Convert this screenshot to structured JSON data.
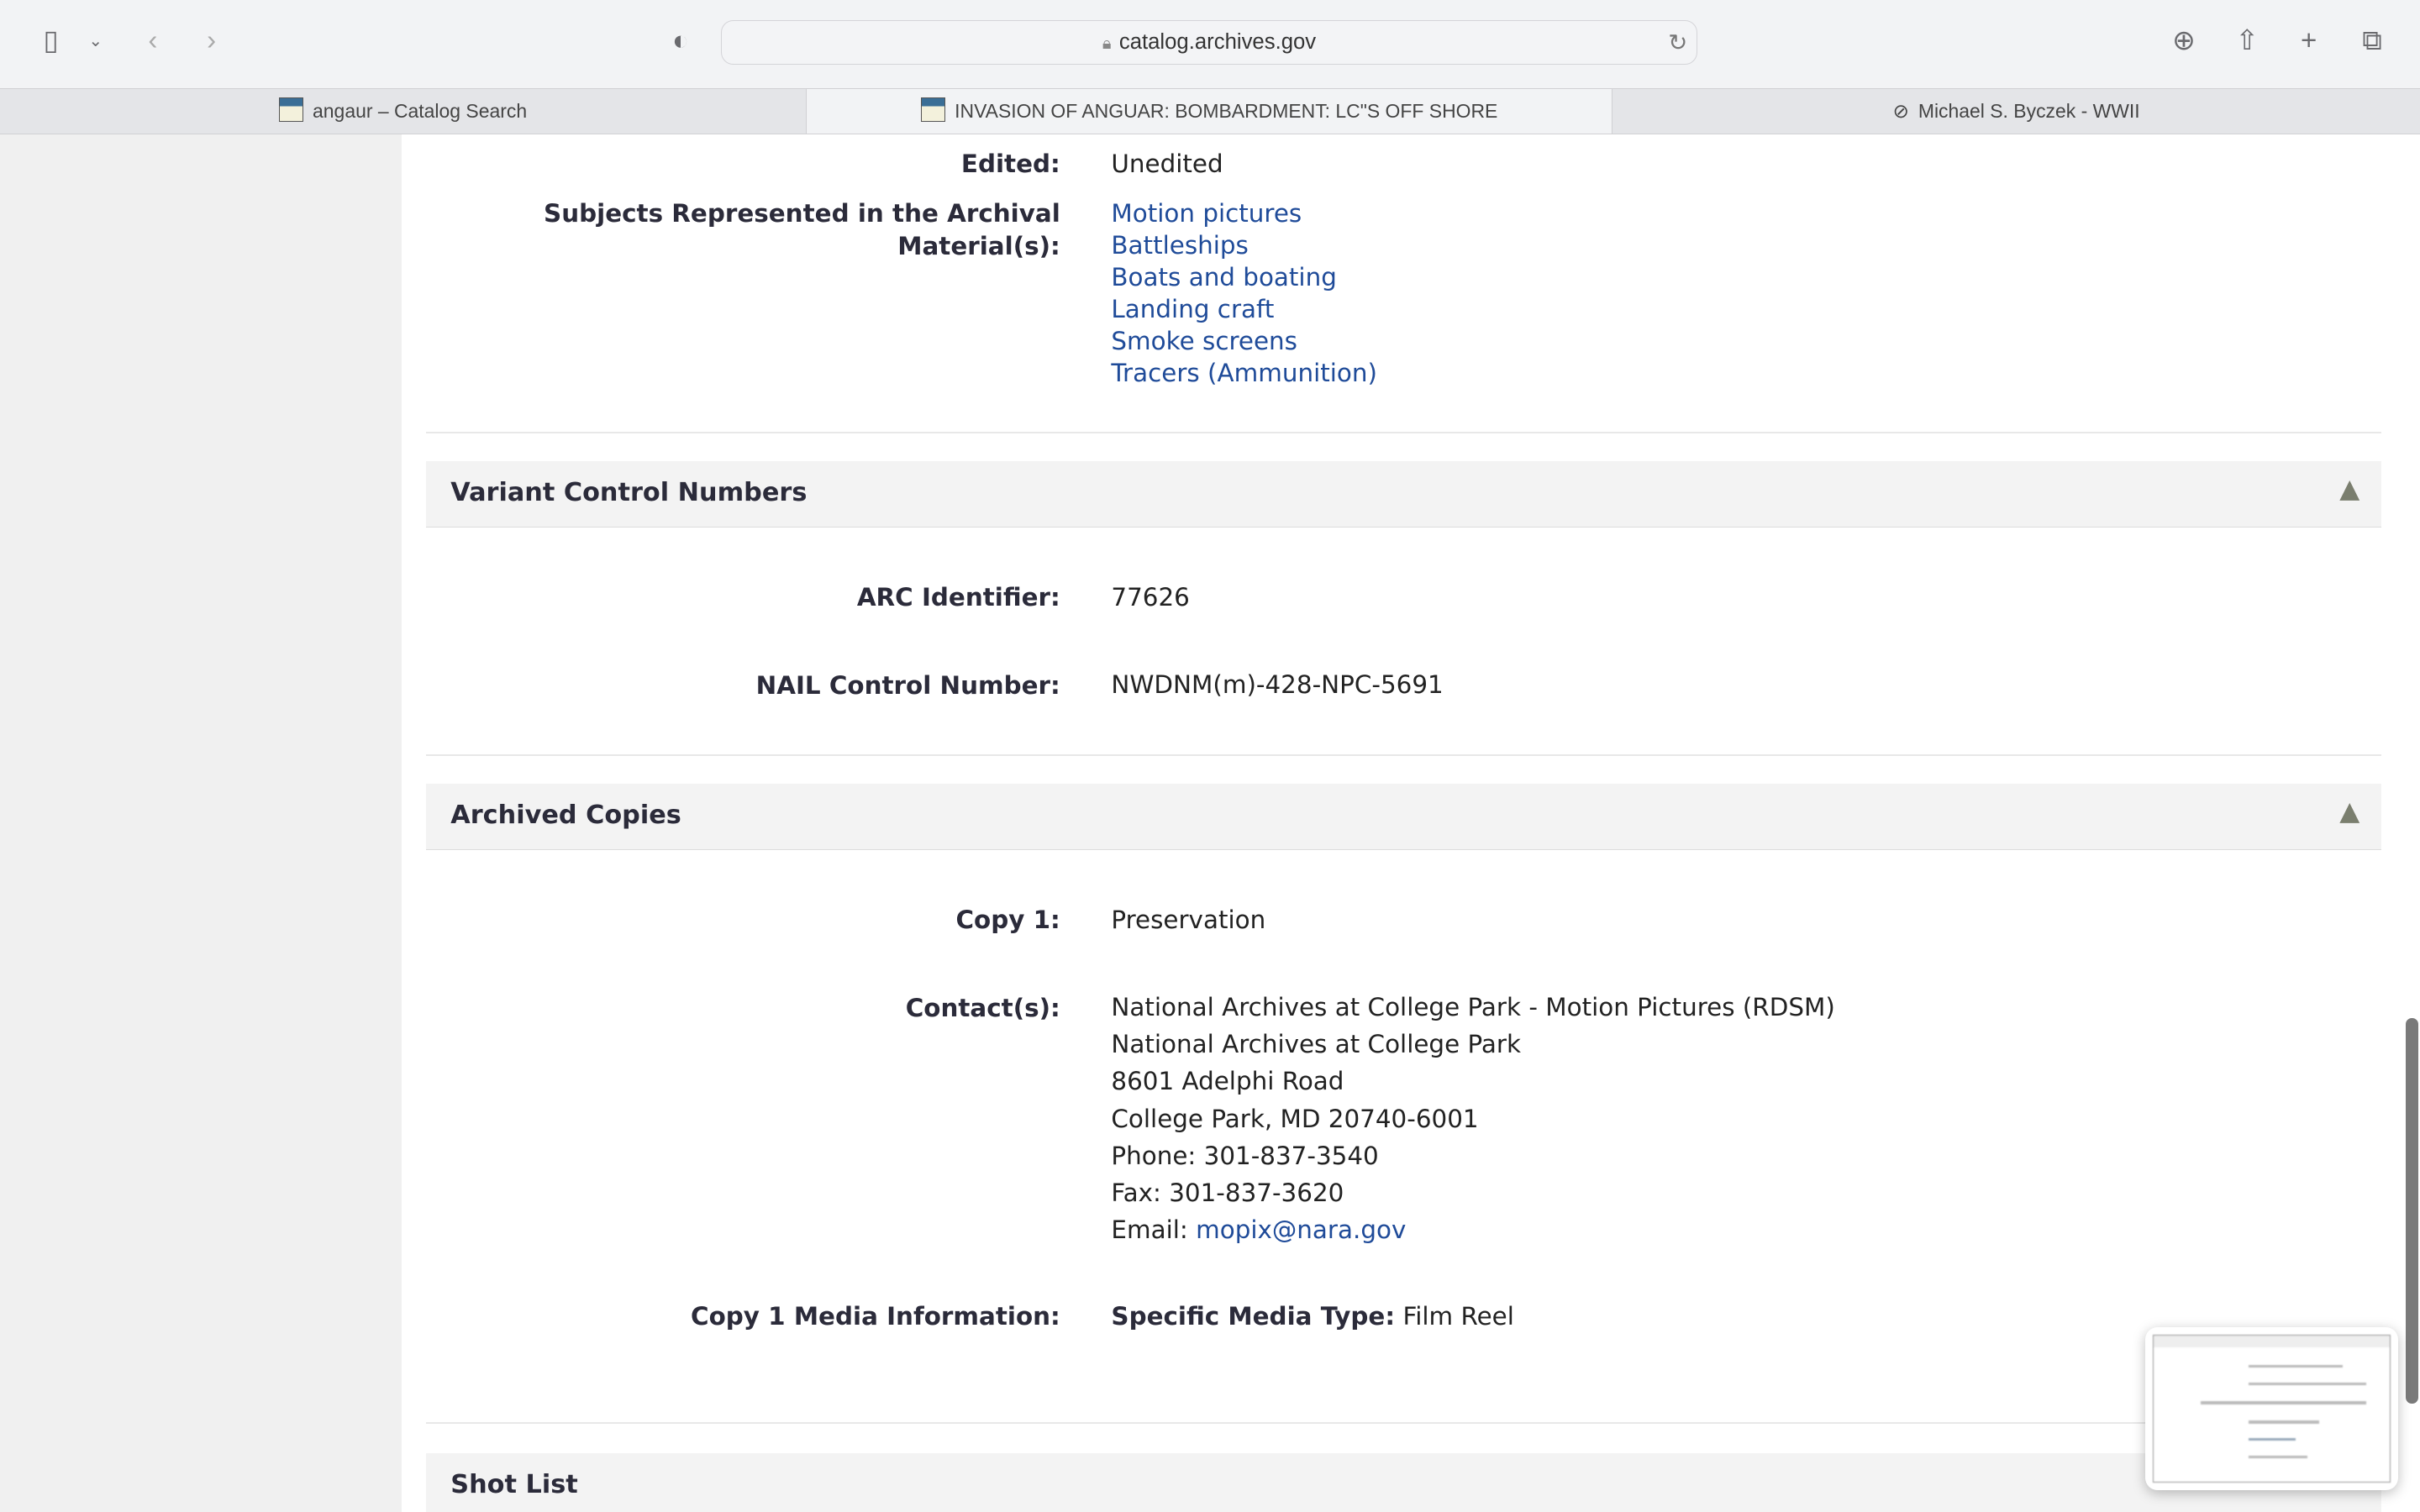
{
  "browser": {
    "url": "catalog.archives.gov",
    "tabs": [
      {
        "label": "angaur – Catalog Search",
        "active": false
      },
      {
        "label": "INVASION OF ANGUAR: BOMBARDMENT: LC\"S OFF SHORE",
        "active": true
      },
      {
        "label": "Michael S. Byczek - WWII",
        "active": false
      }
    ]
  },
  "details": {
    "edited_label": "Edited:",
    "edited_value": "Unedited",
    "subjects_label": "Subjects Represented in the Archival Material(s):",
    "subjects": [
      "Motion pictures",
      "Battleships",
      "Boats and boating",
      "Landing craft",
      "Smoke screens",
      "Tracers (Ammunition)"
    ]
  },
  "variant": {
    "title": "Variant Control Numbers",
    "arc_label": "ARC Identifier:",
    "arc_value": "77626",
    "nail_label": "NAIL Control Number:",
    "nail_value": "NWDNM(m)-428-NPC-5691"
  },
  "copies": {
    "title": "Archived Copies",
    "copy_label": "Copy 1:",
    "copy_value": "Preservation",
    "contact_label": "Contact(s):",
    "contact_lines": [
      "National Archives at College Park - Motion Pictures (RDSM)",
      "National Archives at College Park",
      "8601 Adelphi Road",
      "College Park, MD 20740-6001",
      "Phone: 301-837-3540",
      "Fax: 301-837-3620"
    ],
    "email_prefix": "Email:",
    "email": "mopix@nara.gov",
    "media_label": "Copy 1 Media Information:",
    "media_type_label": "Specific Media Type:",
    "media_type_value": "Film Reel"
  },
  "shot_list": {
    "title": "Shot List"
  },
  "colors": {
    "link": "#1f4b99",
    "section_bg": "#f3f3f3",
    "sidebar_bg": "#f0f0f0"
  }
}
